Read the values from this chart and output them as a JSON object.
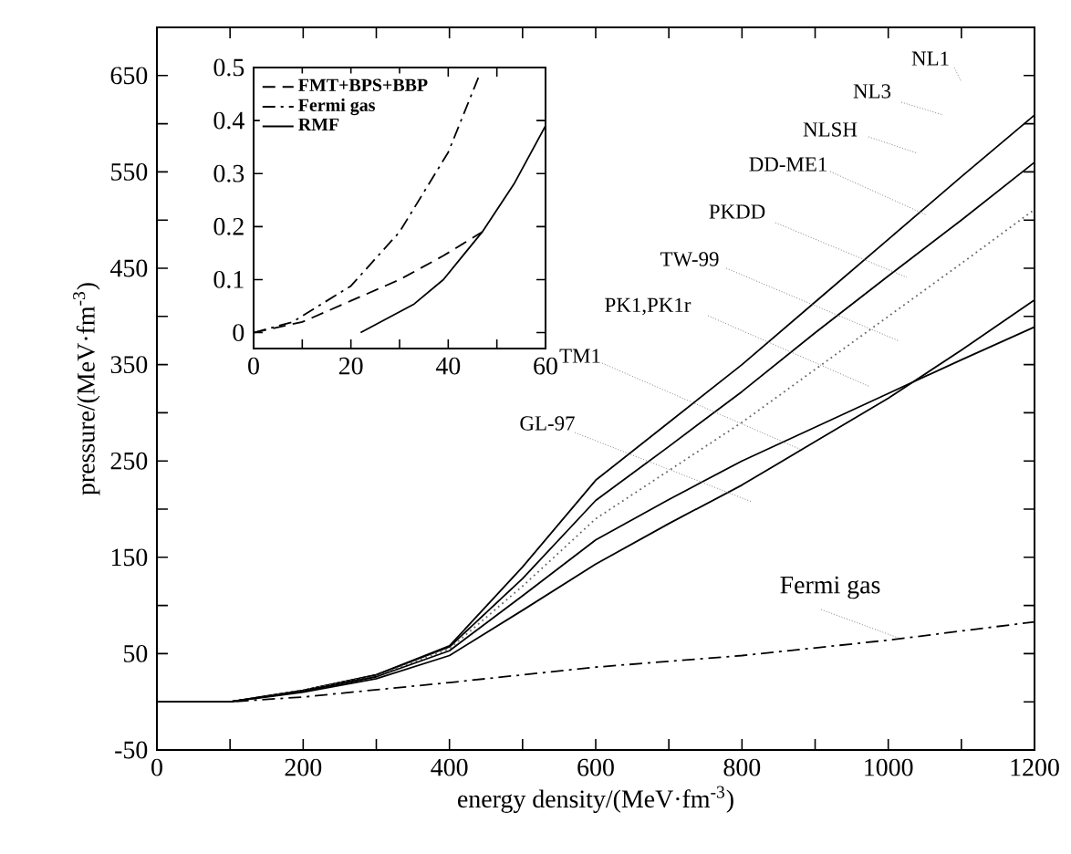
{
  "chart_data": [
    {
      "type": "line",
      "xlabel": "energy density/(MeV·fm$^{-3}$)",
      "ylabel": "pressure/(MeV·fm$^{-3}$)",
      "xlim": [
        0,
        1200
      ],
      "ylim": [
        -50,
        700
      ],
      "xticks": [
        0,
        {
          "value": 100,
          "label": null
        },
        200,
        {
          "value": 300,
          "label": null
        },
        400,
        {
          "value": 500,
          "label": null
        },
        600,
        {
          "value": 700,
          "label": null
        },
        800,
        {
          "value": 900,
          "label": null
        },
        1000,
        {
          "value": 1100,
          "label": null
        },
        1200
      ],
      "yticks": [
        -50,
        {
          "value": 0,
          "label": null
        },
        50,
        {
          "value": 100,
          "label": null
        },
        150,
        {
          "value": 200,
          "label": null
        },
        250,
        {
          "value": 300,
          "label": null
        },
        350,
        {
          "value": 400,
          "label": null
        },
        450,
        {
          "value": 500,
          "label": null
        },
        550,
        {
          "value": 600,
          "label": null
        },
        650
      ],
      "x": [
        0,
        100,
        200,
        300,
        400,
        500,
        600,
        700,
        800,
        900,
        1000,
        1100,
        1200
      ],
      "grid": false,
      "legend": false,
      "series": [
        {
          "color": "#000000",
          "line_style": "solid",
          "values": [
            0,
            0,
            12,
            28,
            58,
            140,
            230,
            290,
            350,
            415,
            480,
            545,
            609
          ]
        },
        {
          "color": "#000000",
          "line_style": "solid",
          "values": [
            0,
            0,
            12,
            28,
            57,
            128,
            209,
            265,
            322,
            383,
            442,
            500,
            560
          ]
        },
        {
          "color": "#666666",
          "line_style": "dotted",
          "values": [
            0,
            0,
            12,
            27,
            55,
            120,
            190,
            240,
            290,
            345,
            400,
            455,
            511
          ]
        },
        {
          "color": "#000000",
          "line_style": "solid",
          "values": [
            0,
            0,
            11,
            26,
            53,
            110,
            168,
            210,
            250,
            285,
            320,
            355,
            389
          ]
        },
        {
          "color": "#000000",
          "line_style": "solid",
          "values": [
            0,
            0,
            10,
            24,
            48,
            95,
            143,
            185,
            225,
            270,
            315,
            365,
            417
          ]
        },
        {
          "color": "#000000",
          "line_style": "dashdot",
          "x": [
            0,
            100,
            200,
            400,
            600,
            800,
            1000,
            1200
          ],
          "values": [
            0,
            0,
            5,
            20,
            36,
            48,
            64,
            83
          ]
        }
      ],
      "annotations": [
        "NL1",
        "NL3",
        "NLSH",
        {
          "text": "DD-ME1",
          "x": 1053,
          "y": 505
        },
        "PKDD",
        "TW-99",
        "PK1,PK1r",
        {
          "text": "TM1",
          "x": 883,
          "y": 261
        },
        "GL-97",
        {
          "text": "Fermi gas",
          "x": 1015,
          "y": 66
        }
      ]
    },
    {
      "type": "line",
      "xlim": [
        0,
        60
      ],
      "ylim": [
        -0.03,
        0.5
      ],
      "xticks": [
        0,
        {
          "value": 10,
          "label": null
        },
        20,
        {
          "value": 30,
          "label": null
        },
        40,
        {
          "value": 50,
          "label": null
        },
        60
      ],
      "yticks": [
        0,
        0.1,
        0.2,
        0.3,
        0.4,
        0.5
      ],
      "grid": false,
      "legend": "top left",
      "series": [
        {
          "name": "FMT+BPS+BBP",
          "color": "#000000",
          "line_style": "dashed",
          "x": [
            0,
            10,
            20,
            30,
            39,
            47
          ],
          "values": [
            0,
            0.02,
            0.06,
            0.1,
            0.145,
            0.19
          ]
        },
        {
          "name": "Fermi gas",
          "color": "#000000",
          "line_style": "dashdot",
          "x": [
            0,
            8,
            20,
            30,
            40,
            46.6
          ],
          "values": [
            0,
            0.02,
            0.088,
            0.19,
            0.34,
            0.49
          ]
        },
        {
          "name": "RMF",
          "color": "#000000",
          "line_style": "solid",
          "x": [
            22,
            33,
            39,
            47,
            53.5,
            60
          ],
          "values": [
            0,
            0.054,
            0.1,
            0.19,
            0.28,
            0.39
          ]
        }
      ]
    }
  ]
}
